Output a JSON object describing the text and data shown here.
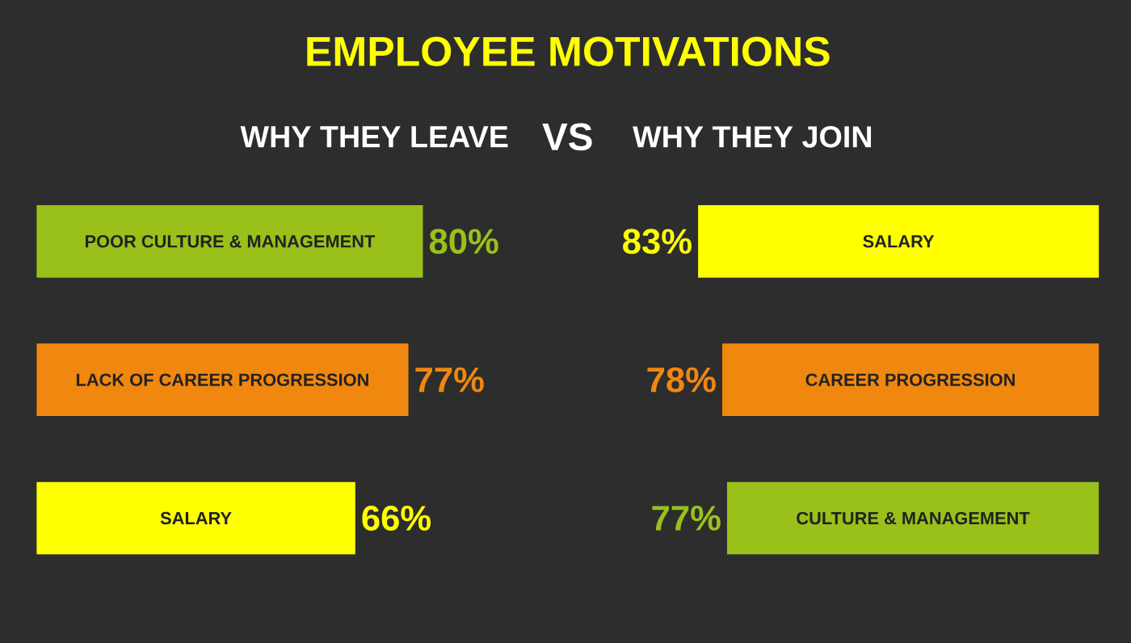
{
  "chart_data": [
    {
      "type": "bar",
      "orientation": "horizontal",
      "title": "EMPLOYEE MOTIVATIONS",
      "subtitle": "WHY THEY LEAVE",
      "annotations": [
        "VS"
      ],
      "categories": [
        "POOR CULTURE & MANAGEMENT",
        "LACK OF CAREER PROGRESSION",
        "SALARY"
      ],
      "values": [
        80,
        77,
        66
      ],
      "value_labels": [
        "80%",
        "77%",
        "66%"
      ],
      "colors": [
        "#99c11a",
        "#f0870f",
        "#ffff00"
      ]
    },
    {
      "type": "bar",
      "orientation": "horizontal",
      "subtitle": "WHY THEY JOIN",
      "categories": [
        "SALARY",
        "CAREER PROGRESSION",
        "CULTURE & MANAGEMENT"
      ],
      "values": [
        83,
        78,
        77
      ],
      "value_labels": [
        "83%",
        "78%",
        "77%"
      ],
      "colors": [
        "#ffff00",
        "#f0870f",
        "#99c11a"
      ]
    }
  ]
}
